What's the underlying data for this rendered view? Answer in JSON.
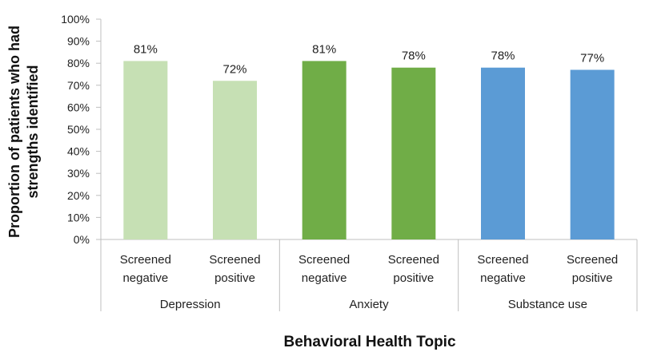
{
  "chart_data": {
    "type": "bar",
    "xlabel": "Behavioral Health Topic",
    "ylabel_lines": [
      "Proportion of patients who had",
      "strengths identified"
    ],
    "ylim": [
      0,
      100
    ],
    "y_ticks": [
      0,
      10,
      20,
      30,
      40,
      50,
      60,
      70,
      80,
      90,
      100
    ],
    "y_tick_suffix": "%",
    "grid": false,
    "groups": [
      {
        "name": "Depression",
        "bars": [
          {
            "line1": "Screened",
            "line2": "negative",
            "value": 81,
            "label": "81%",
            "color": "#c6e0b4"
          },
          {
            "line1": "Screened",
            "line2": "positive",
            "value": 72,
            "label": "72%",
            "color": "#c6e0b4"
          }
        ]
      },
      {
        "name": "Anxiety",
        "bars": [
          {
            "line1": "Screened",
            "line2": "negative",
            "value": 81,
            "label": "81%",
            "color": "#70ad47"
          },
          {
            "line1": "Screened",
            "line2": "positive",
            "value": 78,
            "label": "78%",
            "color": "#70ad47"
          }
        ]
      },
      {
        "name": "Substance use",
        "bars": [
          {
            "line1": "Screened",
            "line2": "negative",
            "value": 78,
            "label": "78%",
            "color": "#5b9bd5"
          },
          {
            "line1": "Screened",
            "line2": "positive",
            "value": 77,
            "label": "77%",
            "color": "#5b9bd5"
          }
        ]
      }
    ]
  }
}
